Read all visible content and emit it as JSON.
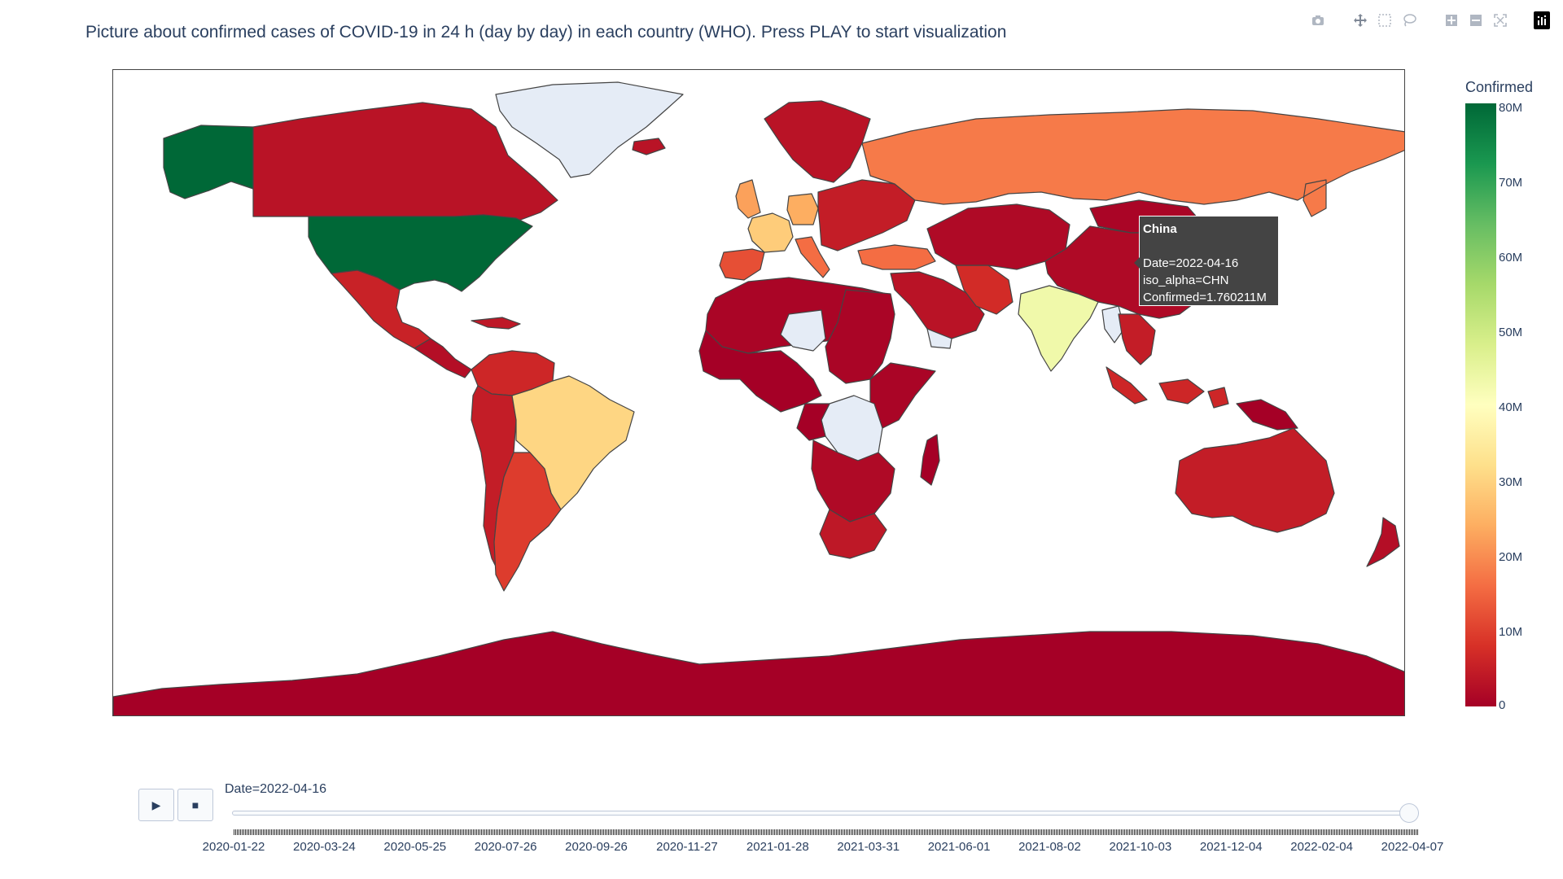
{
  "title": "Picture about confirmed cases of COVID-19 in 24 h (day by day) in each country (WHO). Press PLAY to start visualization",
  "modebar": {
    "icons": [
      "camera-icon",
      "move-icon",
      "box-select-icon",
      "lasso-icon",
      "zoom-in-icon",
      "zoom-out-icon",
      "autoscale-icon",
      "plotly-logo-icon"
    ]
  },
  "colorscale": [
    "#a50026",
    "#d73027",
    "#f46d43",
    "#fdae61",
    "#fee08b",
    "#ffffbf",
    "#d9ef8b",
    "#a6d96a",
    "#66bd63",
    "#1a9850",
    "#006837"
  ],
  "colorbar": {
    "title": "Confirmed",
    "ticks": [
      "80M",
      "70M",
      "60M",
      "50M",
      "40M",
      "30M",
      "20M",
      "10M",
      "0"
    ]
  },
  "tooltip": {
    "country": "China",
    "date": "Date=2022-04-16",
    "iso": "iso_alpha=CHN",
    "confirmed": "Confirmed=1.760211M"
  },
  "map": {
    "no_data_color": "#e5ecf6",
    "border_color": "#444444",
    "regions": [
      {
        "name": "Greenland",
        "level": null
      },
      {
        "name": "Alaska",
        "level": 1.0
      },
      {
        "name": "Canada",
        "level": 0.04
      },
      {
        "name": "United States",
        "level": 1.0
      },
      {
        "name": "Mexico",
        "level": 0.07
      },
      {
        "name": "Central America",
        "level": 0.03
      },
      {
        "name": "Caribbean",
        "level": 0.05
      },
      {
        "name": "Colombia-Venezuela",
        "level": 0.08
      },
      {
        "name": "Peru-Chile-Bolivia",
        "level": 0.06
      },
      {
        "name": "Brazil",
        "level": 0.38
      },
      {
        "name": "Argentina",
        "level": 0.12
      },
      {
        "name": "Iceland-Scandinavia",
        "level": 0.04
      },
      {
        "name": "United Kingdom",
        "level": 0.28
      },
      {
        "name": "France",
        "level": 0.36
      },
      {
        "name": "Spain",
        "level": 0.15
      },
      {
        "name": "Germany",
        "level": 0.3
      },
      {
        "name": "Italy",
        "level": 0.2
      },
      {
        "name": "Eastern Europe",
        "level": 0.06
      },
      {
        "name": "Turkey",
        "level": 0.2
      },
      {
        "name": "Russia",
        "level": 0.22
      },
      {
        "name": "Middle East",
        "level": 0.04
      },
      {
        "name": "Iran",
        "level": 0.09
      },
      {
        "name": "Central Asia",
        "level": 0.02
      },
      {
        "name": "China",
        "level": 0.02
      },
      {
        "name": "Mongolia",
        "level": 0.01
      },
      {
        "name": "India",
        "level": 0.54
      },
      {
        "name": "Myanmar",
        "level": null
      },
      {
        "name": "Southeast Asia",
        "level": 0.06
      },
      {
        "name": "Japan-Korea",
        "level": 0.1
      },
      {
        "name": "Indonesia",
        "level": 0.08
      },
      {
        "name": "Papua New Guinea",
        "level": 0.0
      },
      {
        "name": "Australia",
        "level": 0.06
      },
      {
        "name": "New Zealand",
        "level": 0.03
      },
      {
        "name": "North Africa",
        "level": 0.01
      },
      {
        "name": "Sahel",
        "level": 0.0
      },
      {
        "name": "Chad-Niger",
        "level": null
      },
      {
        "name": "Egypt-Sudan",
        "level": 0.01
      },
      {
        "name": "Horn of Africa",
        "level": 0.01
      },
      {
        "name": "DR Congo",
        "level": null
      },
      {
        "name": "Central Africa",
        "level": 0.0
      },
      {
        "name": "Southern Africa",
        "level": 0.02
      },
      {
        "name": "South Africa",
        "level": 0.05
      },
      {
        "name": "Madagascar",
        "level": 0.0
      },
      {
        "name": "Antarctica",
        "level": 0.0
      },
      {
        "name": "Yemen",
        "level": null
      }
    ]
  },
  "slider": {
    "current_value": "Date=2022-04-16",
    "play_label": "▶",
    "stop_label": "■",
    "position": 1.0,
    "labels": [
      "2020-01-22",
      "2020-03-24",
      "2020-05-25",
      "2020-07-26",
      "2020-09-26",
      "2020-11-27",
      "2021-01-28",
      "2021-03-31",
      "2021-06-01",
      "2021-08-02",
      "2021-10-03",
      "2021-12-04",
      "2022-02-04",
      "2022-04-07"
    ]
  }
}
